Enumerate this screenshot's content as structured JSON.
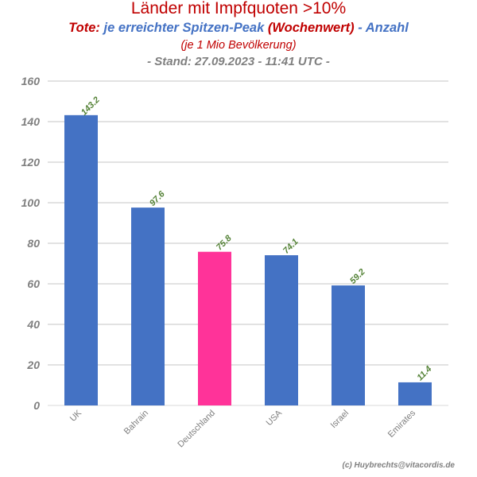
{
  "header": {
    "title": "Länder mit Impfquoten >10%",
    "subtitle_part1": "Tote:",
    "subtitle_part2": "je erreichter Spitzen-Peak",
    "subtitle_part3": "(Wochenwert)",
    "subtitle_part4": "- Anzahl",
    "note": "(je 1 Mio Bevölkerung)",
    "stand": "- Stand: 27.09.2023 - 11:41 UTC -"
  },
  "footer": {
    "copyright": "(c) Huybrechts@vitacordis.de"
  },
  "colors": {
    "bar_default": "#4472c4",
    "bar_highlight": "#ff3399",
    "grid": "#d9d9d9",
    "data_label": "#538135"
  },
  "chart_data": {
    "type": "bar",
    "categories": [
      "UK",
      "Bahrain",
      "Deutschland",
      "USA",
      "Israel",
      "Emirates"
    ],
    "values": [
      143.2,
      97.6,
      75.8,
      74.1,
      59.2,
      11.4
    ],
    "value_labels": [
      "143.2",
      "97.6",
      "75.8",
      "74.1",
      "59.2",
      "11.4"
    ],
    "highlight_category": "Deutschland",
    "ylim": [
      0,
      160
    ],
    "yticks": [
      0,
      20,
      40,
      60,
      80,
      100,
      120,
      140,
      160
    ],
    "grid": true,
    "legend": "none"
  }
}
